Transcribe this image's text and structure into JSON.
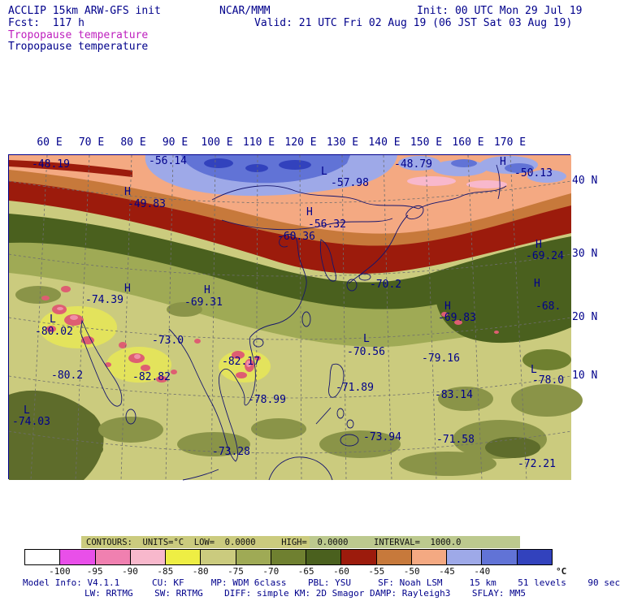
{
  "header": {
    "model": "ACCLIP 15km ARW-GFS init",
    "center": "NCAR/MMM",
    "init": "Init: 00 UTC Mon 29 Jul 19",
    "fcst": "Fcst:  117 h",
    "valid": "Valid: 21 UTC Fri 02 Aug 19 (06 JST Sat 03 Aug 19)",
    "field_title_magenta": "Tropopause temperature",
    "field_title_navy": "Tropopause temperature"
  },
  "contour_info": "CONTOURS:  UNITS=°C  LOW=  0.0000     HIGH=  0.0000     INTERVAL=  1000.0",
  "footer": {
    "line1": "Model Info: V4.1.1      CU: KF     MP: WDM 6class    PBL: YSU     SF: Noah LSM     15 km    51 levels    90 sec",
    "line2": "LW: RRTMG    SW: RRTMG    DIFF: simple KM: 2D Smagor DAMP: Rayleigh3    SFLAY: MM5"
  },
  "chart_data": {
    "type": "heatmap",
    "title": "Tropopause temperature",
    "units": "°C",
    "region": "East and South Asia map, filled temperature contours",
    "x_ticks": [
      "60 E",
      "70 E",
      "80 E",
      "90 E",
      "100 E",
      "110 E",
      "120 E",
      "130 E",
      "140 E",
      "150 E",
      "160 E",
      "170 E"
    ],
    "y_ticks": [
      "40 N",
      "30 N",
      "20 N",
      "10 N"
    ],
    "colorbar": {
      "units": "°C",
      "levels": [
        -100,
        -95,
        -90,
        -85,
        -80,
        -75,
        -70,
        -65,
        -60,
        -55,
        -50,
        -45,
        -40
      ],
      "colors": [
        "#FFFFFF",
        "#E94FE9",
        "#F080B0",
        "#F8B8CC",
        "#EEEE44",
        "#CBCB7E",
        "#9FAA55",
        "#6F8030",
        "#4A601E",
        "#9C1B0C",
        "#C7793B",
        "#F4A982",
        "#9EA9E8",
        "#6173D6",
        "#3242BD"
      ]
    },
    "contours": {
      "low": 0.0,
      "high": 0.0,
      "interval": 1000.0
    },
    "extrema_labels": [
      {
        "t": "-48.19",
        "x": 28,
        "y": 5
      },
      {
        "t": "-56.14",
        "x": 172,
        "y": 1
      },
      {
        "t": "L",
        "x": 384,
        "y": 14
      },
      {
        "t": "-57.98",
        "x": 396,
        "y": 28
      },
      {
        "t": "-48.79",
        "x": 474,
        "y": 5
      },
      {
        "t": "H",
        "x": 604,
        "y": 2
      },
      {
        "t": "-50.13",
        "x": 622,
        "y": 16
      },
      {
        "t": "H",
        "x": 142,
        "y": 39
      },
      {
        "t": "-49.83",
        "x": 146,
        "y": 54
      },
      {
        "t": "H",
        "x": 366,
        "y": 64
      },
      {
        "t": "-56.32",
        "x": 368,
        "y": 79
      },
      {
        "t": "-60.36",
        "x": 330,
        "y": 94
      },
      {
        "t": "H",
        "x": 648,
        "y": 104
      },
      {
        "t": "-69.24",
        "x": 636,
        "y": 118
      },
      {
        "t": "H",
        "x": 142,
        "y": 158
      },
      {
        "t": "-74.39",
        "x": 94,
        "y": 172
      },
      {
        "t": "H",
        "x": 240,
        "y": 160
      },
      {
        "t": "-69.31",
        "x": 216,
        "y": 175
      },
      {
        "t": "-70.2",
        "x": 444,
        "y": 153
      },
      {
        "t": "H",
        "x": 536,
        "y": 180
      },
      {
        "t": "-69.83",
        "x": 528,
        "y": 194
      },
      {
        "t": "H",
        "x": 646,
        "y": 152
      },
      {
        "t": "-68.",
        "x": 648,
        "y": 180
      },
      {
        "t": "L",
        "x": 50,
        "y": 196
      },
      {
        "t": "-80.02",
        "x": 32,
        "y": 211
      },
      {
        "t": "-73.0",
        "x": 176,
        "y": 222
      },
      {
        "t": "-82.17",
        "x": 262,
        "y": 248
      },
      {
        "t": "L",
        "x": 436,
        "y": 220
      },
      {
        "t": "-70.56",
        "x": 416,
        "y": 236
      },
      {
        "t": "-79.16",
        "x": 508,
        "y": 244
      },
      {
        "t": "-80.2",
        "x": 52,
        "y": 265
      },
      {
        "t": "-82.82",
        "x": 152,
        "y": 267
      },
      {
        "t": "-71.89",
        "x": 402,
        "y": 280
      },
      {
        "t": "-83.14",
        "x": 524,
        "y": 289
      },
      {
        "t": "L",
        "x": 642,
        "y": 258
      },
      {
        "t": "-78.0",
        "x": 644,
        "y": 271
      },
      {
        "t": "-78.99",
        "x": 294,
        "y": 295
      },
      {
        "t": "L",
        "x": 18,
        "y": 308
      },
      {
        "t": "-74.03",
        "x": 4,
        "y": 322
      },
      {
        "t": "-73.94",
        "x": 436,
        "y": 341
      },
      {
        "t": "-71.58",
        "x": 526,
        "y": 344
      },
      {
        "t": "-73.28",
        "x": 250,
        "y": 359
      },
      {
        "t": "-72.21",
        "x": 626,
        "y": 374
      }
    ]
  }
}
